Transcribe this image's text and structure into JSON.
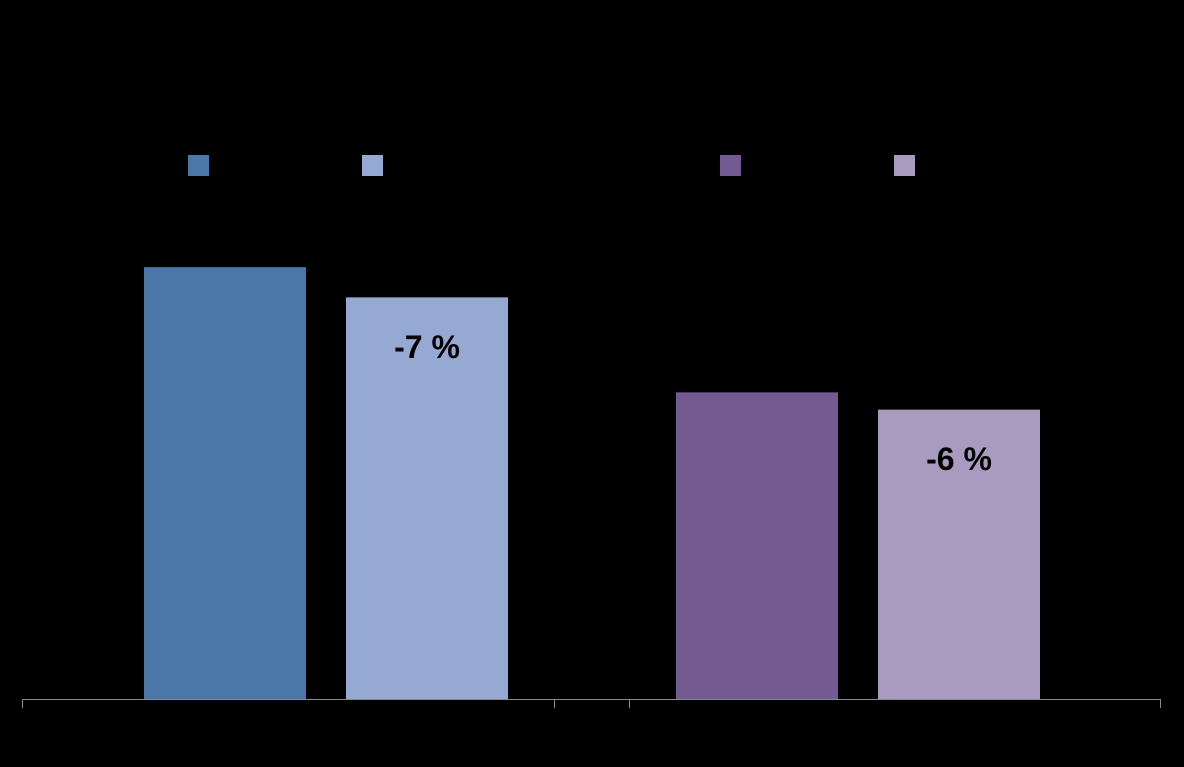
{
  "chart_data": [
    {
      "type": "bar",
      "series": [
        {
          "color": "#4a76a8",
          "values": [
            100
          ]
        },
        {
          "color": "#95a9d2",
          "values": [
            93
          ]
        }
      ],
      "annotation": "-7 %",
      "ylim": [
        0,
        160
      ]
    },
    {
      "type": "bar",
      "series": [
        {
          "color": "#735b91",
          "values": [
            71
          ]
        },
        {
          "color": "#a99bbf",
          "values": [
            67
          ]
        }
      ],
      "annotation": "-6 %",
      "ylim": [
        0,
        160
      ]
    }
  ]
}
